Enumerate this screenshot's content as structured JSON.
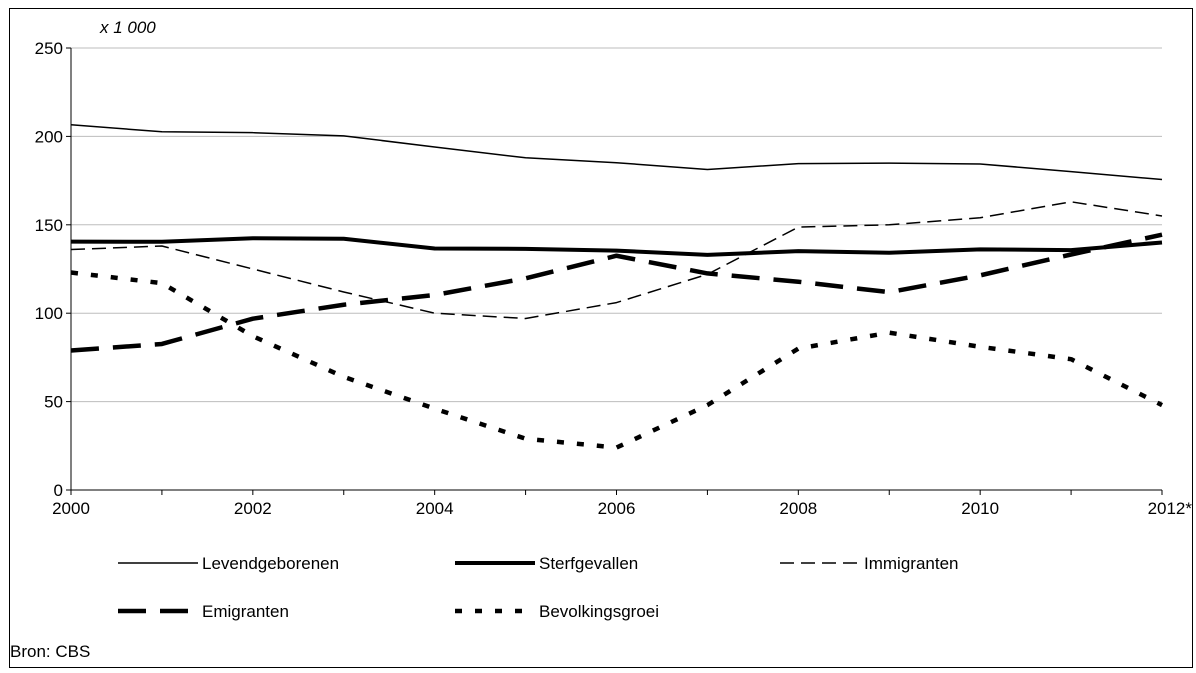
{
  "source": "Bron: CBS",
  "chart_data": {
    "type": "line",
    "unit_label": "x 1 000",
    "x": [
      "2000",
      "2001",
      "2002",
      "2003",
      "2004",
      "2005",
      "2006",
      "2007",
      "2008",
      "2009",
      "2010",
      "2011",
      "2012"
    ],
    "x_tick_labels": [
      "2000",
      "2002",
      "2004",
      "2006",
      "2008",
      "2010",
      "2012*"
    ],
    "y_ticks": [
      0,
      50,
      100,
      150,
      200,
      250
    ],
    "ylim": [
      0,
      250
    ],
    "grid": true,
    "legend_position": "bottom",
    "series": [
      {
        "name": "Levendgeborenen",
        "style": "thin-solid",
        "values": [
          206.6,
          202.6,
          202.1,
          200.3,
          194.0,
          187.9,
          185.1,
          181.3,
          184.6,
          184.9,
          184.4,
          180.1,
          175.6
        ]
      },
      {
        "name": "Sterfgevallen",
        "style": "thick-solid",
        "values": [
          140.5,
          140.4,
          142.4,
          142.1,
          136.6,
          136.4,
          135.4,
          133.0,
          135.1,
          134.2,
          136.1,
          135.7,
          140.0
        ]
      },
      {
        "name": "Immigranten",
        "style": "thin-dash",
        "values": [
          136.0,
          138.0,
          125.0,
          112.0,
          100.0,
          97.0,
          106.0,
          122.0,
          148.7,
          150.0,
          154.0,
          163.0,
          155.0
        ]
      },
      {
        "name": "Emigranten",
        "style": "thick-dash",
        "values": [
          78.9,
          82.6,
          96.9,
          104.8,
          110.3,
          119.7,
          132.5,
          122.5,
          117.8,
          111.9,
          121.4,
          133.2,
          144.4
        ]
      },
      {
        "name": "Bevolkingsgroei",
        "style": "dotted",
        "values": [
          123.0,
          117.0,
          87.0,
          64.0,
          46.0,
          29.0,
          24.0,
          48.0,
          80.0,
          89.0,
          81.0,
          74.0,
          48.0
        ]
      }
    ]
  }
}
